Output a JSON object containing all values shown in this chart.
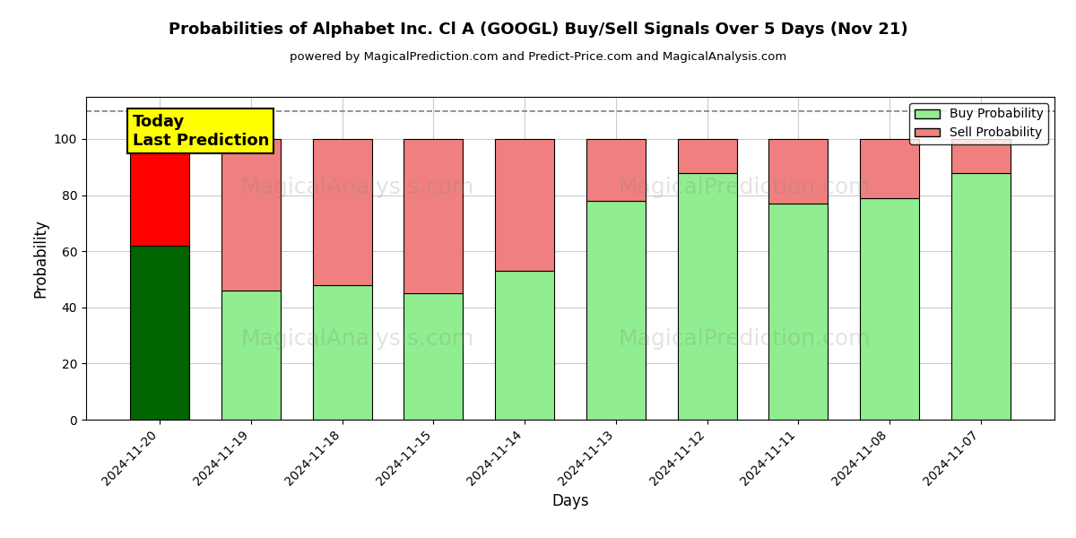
{
  "title": "Probabilities of Alphabet Inc. Cl A (GOOGL) Buy/Sell Signals Over 5 Days (Nov 21)",
  "subtitle": "powered by MagicalPrediction.com and Predict-Price.com and MagicalAnalysis.com",
  "xlabel": "Days",
  "ylabel": "Probability",
  "dates": [
    "2024-11-20",
    "2024-11-19",
    "2024-11-18",
    "2024-11-15",
    "2024-11-14",
    "2024-11-13",
    "2024-11-12",
    "2024-11-11",
    "2024-11-08",
    "2024-11-07"
  ],
  "buy_values": [
    62,
    46,
    48,
    45,
    53,
    78,
    88,
    77,
    79,
    88
  ],
  "sell_values": [
    38,
    54,
    52,
    55,
    47,
    22,
    12,
    23,
    21,
    12
  ],
  "buy_color_dark": "#006400",
  "buy_color_light": "#90EE90",
  "sell_color_dark": "#FF0000",
  "sell_color_light": "#F08080",
  "ylim": [
    0,
    115
  ],
  "yticks": [
    0,
    20,
    40,
    60,
    80,
    100
  ],
  "dashed_line_y": 110,
  "legend_buy": "Buy Probability",
  "legend_sell": "Sell Probability",
  "annotation_text": "Today\nLast Prediction",
  "watermark_left": "MagicalAnalysis.com",
  "watermark_right": "MagicalPrediction.com",
  "bar_width": 0.65,
  "edgecolor": "#000000",
  "background_color": "#ffffff",
  "grid_color": "#cccccc"
}
